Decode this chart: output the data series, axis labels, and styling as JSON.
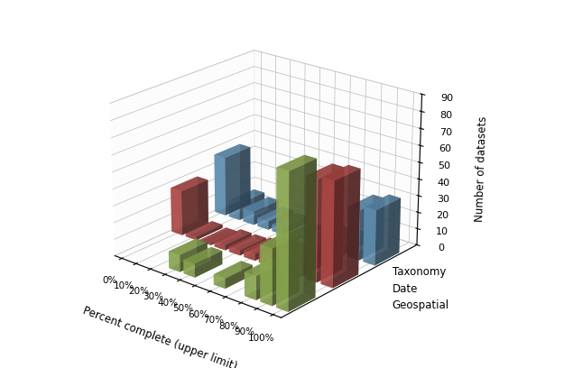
{
  "categories": [
    "0%",
    "10%",
    "20%",
    "30%",
    "40%",
    "50%",
    "60%",
    "70%",
    "80%",
    "90%",
    "100%"
  ],
  "taxonomy": [
    36,
    10,
    8,
    5,
    4,
    1,
    2,
    5,
    6,
    30,
    33
  ],
  "date": [
    27,
    2,
    1,
    3,
    3,
    4,
    7,
    8,
    10,
    60,
    62
  ],
  "geospatial": [
    0,
    0,
    0,
    10,
    8,
    0,
    6,
    0,
    14,
    33,
    79
  ],
  "taxonomy_color": "#6a9ec5",
  "date_color": "#c0504d",
  "geospatial_color": "#9bbb59",
  "alpha": 0.72,
  "xlabel": "Percent complete (upper limit)",
  "ylabel": "Number of datasets",
  "zlim": [
    0,
    90
  ],
  "zticks": [
    0,
    10,
    20,
    30,
    40,
    50,
    60,
    70,
    80,
    90
  ],
  "legend_labels": [
    "Taxonomy",
    "Date",
    "Geospatial"
  ],
  "background_color": "#ffffff",
  "elev": 22,
  "azim": -50
}
